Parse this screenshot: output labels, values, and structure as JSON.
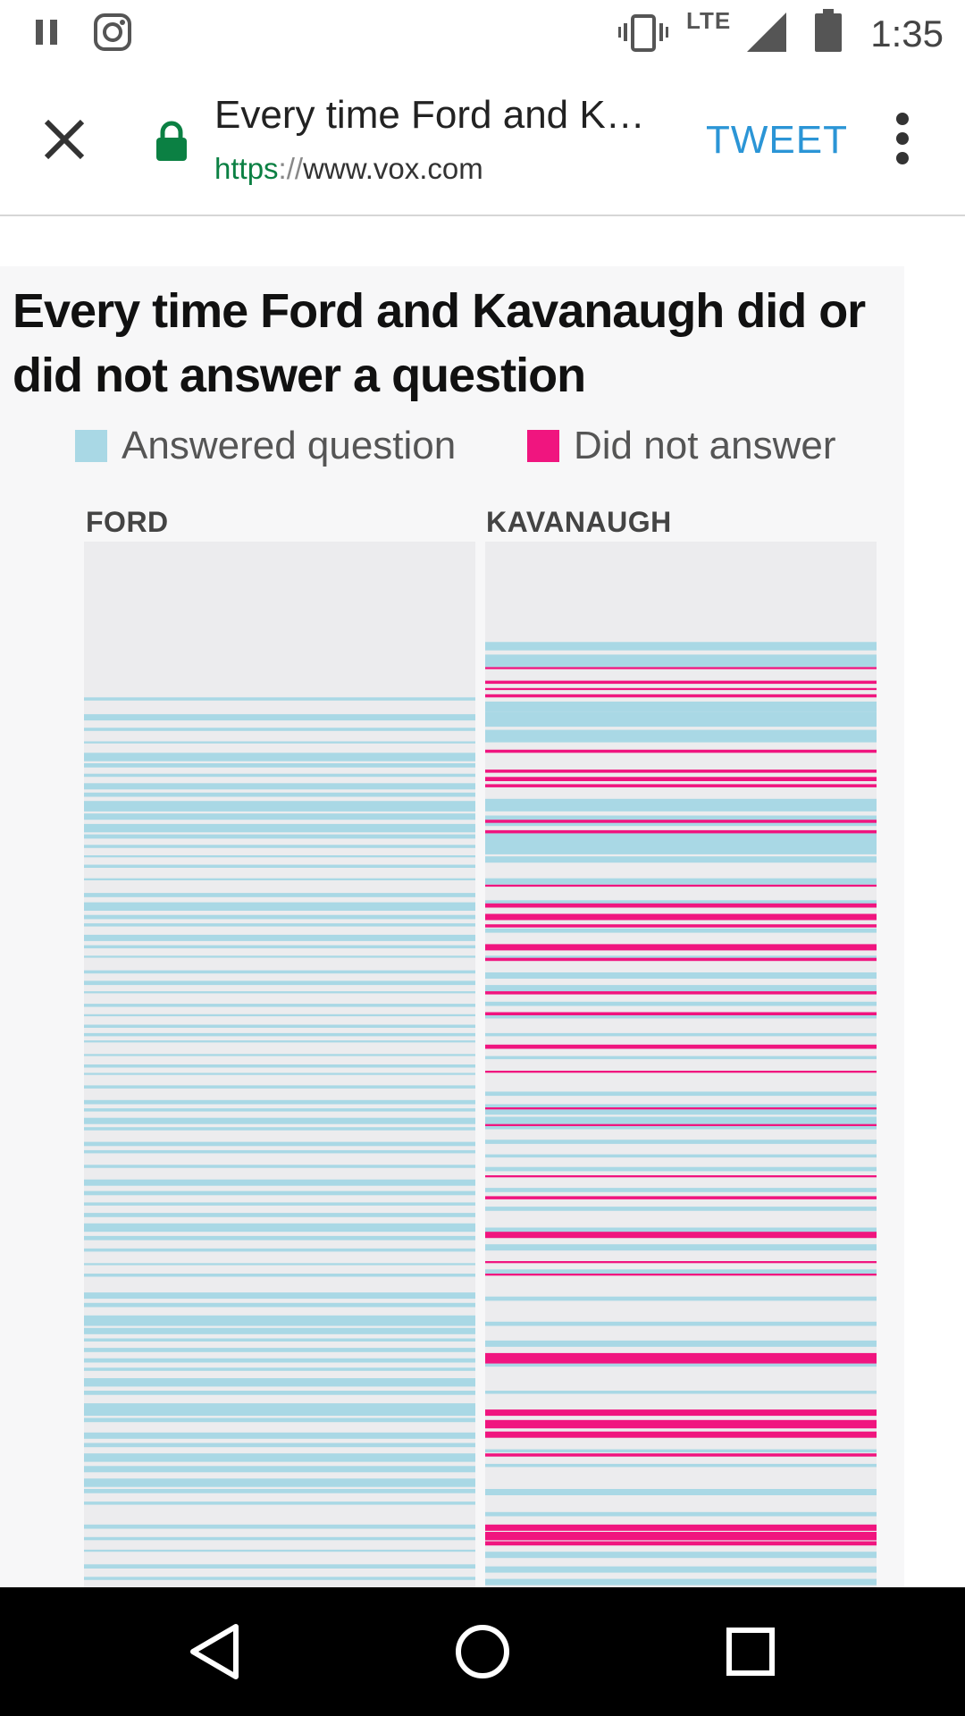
{
  "status_bar": {
    "time": "1:35",
    "network": "LTE",
    "icons": [
      "pause-icon",
      "instagram-icon",
      "vibrate-icon",
      "signal-icon",
      "battery-icon"
    ]
  },
  "toolbar": {
    "title": "Every time Ford and Kavanaugh did or did not answer a question",
    "url_scheme": "https",
    "url_sep": "://",
    "url_host": "www.vox.com",
    "tweet_label": "TWEET"
  },
  "colors": {
    "answered": "#a9d8e5",
    "not_answered": "#f0157f",
    "tweet": "#2b95d6",
    "lock": "#0b8043"
  },
  "figure": {
    "title": "Every time Ford and Kavanaugh did or did not answer a question",
    "legend": [
      {
        "label": "Answered question",
        "color": "#a9d8e5"
      },
      {
        "label": "Did not answer",
        "color": "#f0157f"
      }
    ],
    "columns": [
      {
        "label": "FORD"
      },
      {
        "label": "KAVANAUGH"
      }
    ]
  },
  "chart_data": {
    "type": "timeline-stripes",
    "title": "Every time Ford and Kavanaugh did or did not answer a question",
    "y_unit": "hearing progress (0 = start, 1 = end)",
    "series": [
      {
        "name": "FORD",
        "answered": [
          [
            0.149,
            0.003
          ],
          [
            0.165,
            0.006
          ],
          [
            0.178,
            0.003
          ],
          [
            0.191,
            0.002
          ],
          [
            0.202,
            0.008
          ],
          [
            0.212,
            0.004
          ],
          [
            0.222,
            0.003
          ],
          [
            0.231,
            0.006
          ],
          [
            0.24,
            0.004
          ],
          [
            0.248,
            0.01
          ],
          [
            0.26,
            0.006
          ],
          [
            0.27,
            0.008
          ],
          [
            0.28,
            0.004
          ],
          [
            0.29,
            0.003
          ],
          [
            0.3,
            0.002
          ],
          [
            0.309,
            0.003
          ],
          [
            0.322,
            0.002
          ],
          [
            0.336,
            0.004
          ],
          [
            0.345,
            0.008
          ],
          [
            0.357,
            0.004
          ],
          [
            0.365,
            0.003
          ],
          [
            0.376,
            0.006
          ],
          [
            0.386,
            0.003
          ],
          [
            0.396,
            0.002
          ],
          [
            0.41,
            0.003
          ],
          [
            0.42,
            0.004
          ],
          [
            0.43,
            0.002
          ],
          [
            0.442,
            0.003
          ],
          [
            0.452,
            0.002
          ],
          [
            0.462,
            0.003
          ],
          [
            0.47,
            0.003
          ],
          [
            0.477,
            0.002
          ],
          [
            0.49,
            0.002
          ],
          [
            0.5,
            0.003
          ],
          [
            0.508,
            0.002
          ],
          [
            0.52,
            0.003
          ],
          [
            0.534,
            0.004
          ],
          [
            0.542,
            0.003
          ],
          [
            0.551,
            0.006
          ],
          [
            0.56,
            0.003
          ],
          [
            0.574,
            0.004
          ],
          [
            0.582,
            0.003
          ],
          [
            0.596,
            0.003
          ],
          [
            0.61,
            0.006
          ],
          [
            0.621,
            0.004
          ],
          [
            0.632,
            0.003
          ],
          [
            0.642,
            0.004
          ],
          [
            0.652,
            0.008
          ],
          [
            0.664,
            0.004
          ],
          [
            0.676,
            0.003
          ],
          [
            0.69,
            0.002
          ],
          [
            0.7,
            0.003
          ],
          [
            0.718,
            0.006
          ],
          [
            0.728,
            0.004
          ],
          [
            0.74,
            0.01
          ],
          [
            0.752,
            0.006
          ],
          [
            0.762,
            0.003
          ],
          [
            0.771,
            0.004
          ],
          [
            0.781,
            0.004
          ],
          [
            0.79,
            0.003
          ],
          [
            0.8,
            0.008
          ],
          [
            0.812,
            0.004
          ],
          [
            0.824,
            0.012
          ],
          [
            0.838,
            0.004
          ],
          [
            0.852,
            0.006
          ],
          [
            0.862,
            0.004
          ],
          [
            0.872,
            0.008
          ],
          [
            0.884,
            0.006
          ],
          [
            0.896,
            0.008
          ],
          [
            0.906,
            0.004
          ],
          [
            0.918,
            0.003
          ],
          [
            0.94,
            0.004
          ],
          [
            0.952,
            0.003
          ],
          [
            0.964,
            0.002
          ],
          [
            0.978,
            0.004
          ],
          [
            0.99,
            0.003
          ]
        ],
        "not_answered": []
      },
      {
        "name": "KAVANAUGH",
        "answered": [
          [
            0.096,
            0.008
          ],
          [
            0.108,
            0.012
          ],
          [
            0.153,
            0.01
          ],
          [
            0.163,
            0.014
          ],
          [
            0.18,
            0.012
          ],
          [
            0.246,
            0.012
          ],
          [
            0.262,
            0.01
          ],
          [
            0.276,
            0.016
          ],
          [
            0.291,
            0.008
          ],
          [
            0.301,
            0.006
          ],
          [
            0.322,
            0.006
          ],
          [
            0.343,
            0.004
          ],
          [
            0.37,
            0.004
          ],
          [
            0.396,
            0.004
          ],
          [
            0.412,
            0.006
          ],
          [
            0.424,
            0.006
          ],
          [
            0.44,
            0.004
          ],
          [
            0.452,
            0.004
          ],
          [
            0.47,
            0.003
          ],
          [
            0.492,
            0.003
          ],
          [
            0.526,
            0.004
          ],
          [
            0.538,
            0.01
          ],
          [
            0.55,
            0.012
          ],
          [
            0.572,
            0.004
          ],
          [
            0.586,
            0.003
          ],
          [
            0.598,
            0.004
          ],
          [
            0.618,
            0.004
          ],
          [
            0.636,
            0.004
          ],
          [
            0.656,
            0.006
          ],
          [
            0.672,
            0.006
          ],
          [
            0.696,
            0.004
          ],
          [
            0.722,
            0.004
          ],
          [
            0.746,
            0.004
          ],
          [
            0.764,
            0.006
          ],
          [
            0.786,
            0.003
          ],
          [
            0.812,
            0.003
          ],
          [
            0.832,
            0.003
          ],
          [
            0.852,
            0.004
          ],
          [
            0.868,
            0.003
          ],
          [
            0.882,
            0.003
          ],
          [
            0.906,
            0.006
          ],
          [
            0.928,
            0.004
          ],
          [
            0.952,
            0.003
          ],
          [
            0.966,
            0.006
          ],
          [
            0.98,
            0.006
          ],
          [
            0.992,
            0.006
          ]
        ],
        "not_answered": [
          [
            0.12,
            0.002
          ],
          [
            0.133,
            0.003
          ],
          [
            0.14,
            0.002
          ],
          [
            0.146,
            0.003
          ],
          [
            0.199,
            0.003
          ],
          [
            0.218,
            0.003
          ],
          [
            0.225,
            0.004
          ],
          [
            0.232,
            0.003
          ],
          [
            0.266,
            0.003
          ],
          [
            0.276,
            0.003
          ],
          [
            0.328,
            0.002
          ],
          [
            0.346,
            0.004
          ],
          [
            0.356,
            0.006
          ],
          [
            0.366,
            0.003
          ],
          [
            0.385,
            0.006
          ],
          [
            0.398,
            0.003
          ],
          [
            0.43,
            0.003
          ],
          [
            0.45,
            0.003
          ],
          [
            0.481,
            0.004
          ],
          [
            0.506,
            0.002
          ],
          [
            0.541,
            0.002
          ],
          [
            0.557,
            0.002
          ],
          [
            0.606,
            0.002
          ],
          [
            0.626,
            0.003
          ],
          [
            0.66,
            0.006
          ],
          [
            0.688,
            0.002
          ],
          [
            0.7,
            0.002
          ],
          [
            0.776,
            0.01
          ],
          [
            0.83,
            0.006
          ],
          [
            0.84,
            0.008
          ],
          [
            0.851,
            0.006
          ],
          [
            0.872,
            0.003
          ],
          [
            0.94,
            0.006
          ],
          [
            0.947,
            0.008
          ],
          [
            0.956,
            0.004
          ]
        ]
      }
    ]
  },
  "nav_bar": {
    "buttons": [
      "back-icon",
      "home-icon",
      "recents-icon"
    ]
  }
}
